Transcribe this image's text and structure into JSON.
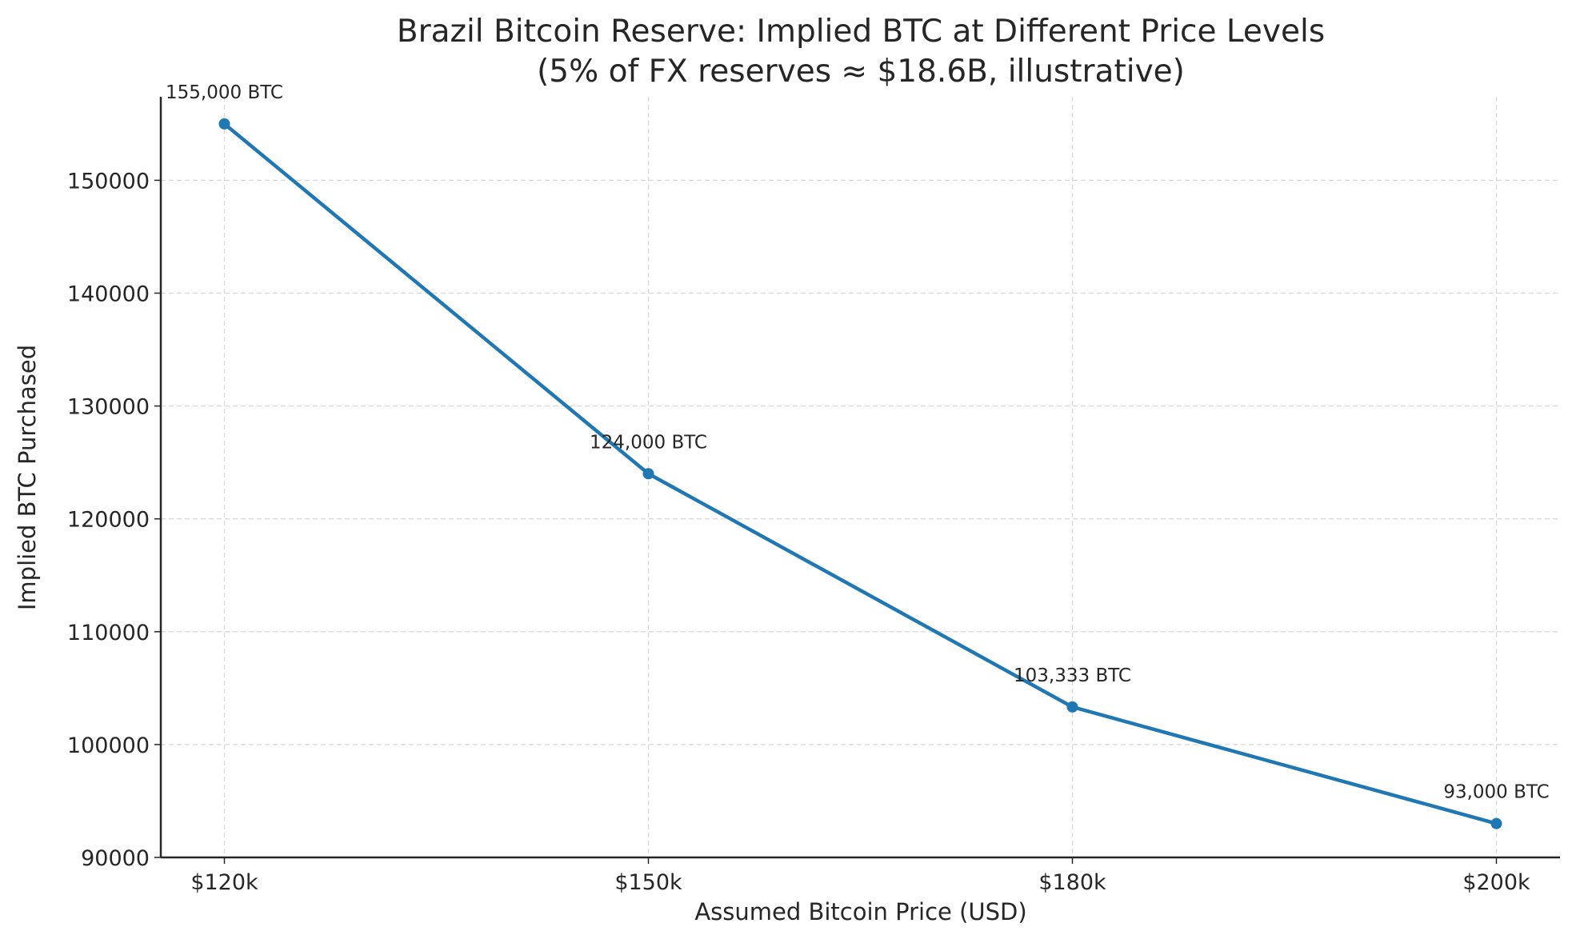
{
  "chart_data": {
    "type": "line",
    "title": "Brazil Bitcoin Reserve: Implied BTC at Different Price Levels",
    "subtitle": "(5% of FX reserves ≈ $18.6B, illustrative)",
    "xlabel": "Assumed Bitcoin Price (USD)",
    "ylabel": "Implied BTC Purchased",
    "categories": [
      "$120k",
      "$150k",
      "$180k",
      "$200k"
    ],
    "values": [
      155000,
      124000,
      103333,
      93000
    ],
    "data_labels": [
      "155,000 BTC",
      "124,000 BTC",
      "103,333 BTC",
      "93,000 BTC"
    ],
    "yticks": [
      90000,
      100000,
      110000,
      120000,
      130000,
      140000,
      150000
    ],
    "ylim": [
      90000,
      157400
    ],
    "grid": true,
    "marker": "circle",
    "color": "#1f77b4"
  }
}
